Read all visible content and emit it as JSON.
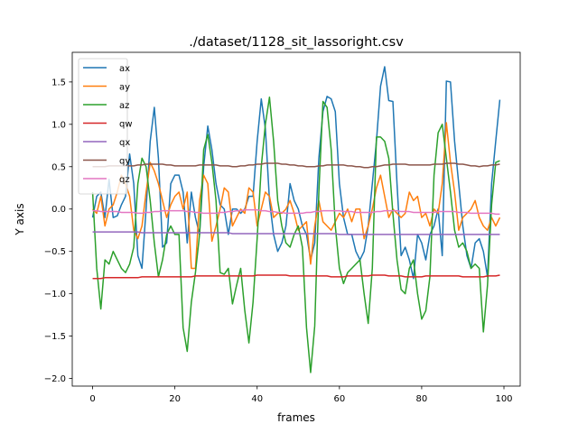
{
  "chart_data": {
    "type": "line",
    "title": "./dataset/1128_sit_lassoright.csv",
    "xlabel": "frames",
    "ylabel": "Y axis",
    "xlim": [
      -4.95,
      103.95
    ],
    "ylim": [
      -2.09,
      1.85
    ],
    "xticks": [
      0,
      20,
      40,
      60,
      80,
      100
    ],
    "yticks": [
      -2.0,
      -1.5,
      -1.0,
      -0.5,
      0.0,
      0.5,
      1.0,
      1.5
    ],
    "xtick_labels": [
      "0",
      "20",
      "40",
      "60",
      "80",
      "100"
    ],
    "ytick_labels": [
      "−2.0",
      "−1.5",
      "−1.0",
      "−0.5",
      "0.0",
      "0.5",
      "1.0",
      "1.5"
    ],
    "grid": false,
    "legend_position": "top-left",
    "series": [
      {
        "name": "ax",
        "color": "#1f77b4",
        "values": [
          -0.1,
          0.15,
          0.2,
          -0.1,
          0.35,
          -0.1,
          -0.08,
          0.05,
          0.15,
          0.65,
          0.3,
          -0.55,
          -0.7,
          0.0,
          0.8,
          1.2,
          0.6,
          -0.45,
          -0.4,
          0.3,
          0.4,
          0.4,
          0.2,
          -0.4,
          0.2,
          -0.1,
          -0.3,
          0.5,
          0.98,
          0.7,
          0.3,
          0.05,
          0.0,
          -0.3,
          0.0,
          0.0,
          -0.05,
          0.0,
          0.15,
          0.15,
          0.8,
          1.3,
          0.95,
          0.1,
          -0.3,
          -0.5,
          -0.4,
          -0.2,
          0.3,
          0.1,
          0.0,
          -0.2,
          -0.3,
          -0.6,
          -0.4,
          0.6,
          1.15,
          1.33,
          1.3,
          1.15,
          0.3,
          -0.1,
          -0.3,
          -0.3,
          -0.5,
          -0.6,
          -0.5,
          -0.2,
          0.3,
          0.8,
          1.45,
          1.68,
          1.28,
          1.27,
          0.3,
          -0.55,
          -0.45,
          -0.6,
          -0.82,
          -0.3,
          -0.4,
          -0.6,
          -0.3,
          -0.2,
          0.0,
          -0.55,
          1.51,
          1.5,
          0.8,
          0.3,
          -0.2,
          -0.55,
          -0.7,
          -0.4,
          -0.35,
          -0.5,
          -0.8,
          0.3,
          0.8,
          1.29
        ]
      },
      {
        "name": "ay",
        "color": "#ff7f0e",
        "values": [
          0.0,
          -0.05,
          0.15,
          -0.2,
          0.0,
          0.05,
          0.2,
          0.4,
          0.3,
          0.15,
          -0.25,
          -0.35,
          -0.2,
          0.2,
          0.55,
          0.45,
          0.3,
          0.1,
          -0.1,
          0.05,
          0.15,
          0.2,
          0.0,
          0.2,
          -0.7,
          -0.7,
          0.1,
          0.4,
          0.3,
          -0.38,
          -0.2,
          0.0,
          0.25,
          0.2,
          -0.2,
          -0.1,
          0.0,
          -0.05,
          0.25,
          0.2,
          -0.2,
          0.0,
          0.2,
          0.15,
          -0.1,
          -0.05,
          -0.05,
          0.0,
          0.1,
          -0.05,
          -0.25,
          -0.2,
          -0.15,
          -0.65,
          -0.2,
          0.1,
          -0.15,
          -0.2,
          -0.25,
          -0.15,
          -0.05,
          -0.1,
          0.0,
          -0.15,
          0.0,
          0.0,
          -0.35,
          -0.2,
          0.0,
          0.25,
          0.4,
          0.15,
          -0.1,
          0.0,
          -0.05,
          -0.1,
          -0.05,
          0.2,
          0.1,
          0.15,
          -0.1,
          -0.05,
          -0.2,
          0.0,
          -0.05,
          0.3,
          1.02,
          0.55,
          0.2,
          -0.25,
          -0.1,
          -0.05,
          0.0,
          0.1,
          -0.1,
          -0.2,
          -0.25,
          -0.1,
          -0.2,
          -0.1
        ]
      },
      {
        "name": "az",
        "color": "#2ca02c",
        "values": [
          0.2,
          -0.7,
          -1.18,
          -0.6,
          -0.65,
          -0.5,
          -0.6,
          -0.7,
          -0.75,
          -0.65,
          -0.45,
          0.3,
          0.6,
          0.5,
          0.1,
          -0.4,
          -0.8,
          -0.6,
          -0.3,
          -0.2,
          -0.3,
          -0.3,
          -1.4,
          -1.68,
          -1.1,
          -0.75,
          -0.3,
          0.7,
          0.88,
          0.55,
          0.1,
          -0.75,
          -0.77,
          -0.7,
          -1.12,
          -0.9,
          -0.7,
          -1.2,
          -1.58,
          -1.1,
          -0.35,
          0.5,
          1.0,
          1.32,
          0.8,
          0.1,
          -0.2,
          -0.4,
          -0.45,
          -0.3,
          -0.2,
          -0.45,
          -1.4,
          -1.93,
          -1.38,
          0.2,
          1.27,
          1.2,
          0.7,
          -0.2,
          -0.7,
          -0.88,
          -0.75,
          -0.7,
          -0.65,
          -0.6,
          -1.0,
          -1.35,
          -0.7,
          0.85,
          0.85,
          0.8,
          0.6,
          -0.05,
          -0.6,
          -0.95,
          -1.0,
          -0.7,
          -0.6,
          -1.0,
          -1.3,
          -1.2,
          -0.8,
          0.4,
          0.9,
          1.0,
          0.6,
          0.2,
          -0.25,
          -0.45,
          -0.4,
          -0.5,
          -0.7,
          -0.65,
          -0.7,
          -1.45,
          -0.9,
          0.05,
          0.55,
          0.57
        ]
      },
      {
        "name": "qw",
        "color": "#d62728",
        "values": [
          -0.82,
          -0.82,
          -0.82,
          -0.81,
          -0.81,
          -0.81,
          -0.81,
          -0.81,
          -0.81,
          -0.81,
          -0.81,
          -0.81,
          -0.8,
          -0.8,
          -0.8,
          -0.8,
          -0.8,
          -0.8,
          -0.8,
          -0.8,
          -0.8,
          -0.8,
          -0.8,
          -0.8,
          -0.8,
          -0.79,
          -0.79,
          -0.79,
          -0.79,
          -0.79,
          -0.79,
          -0.79,
          -0.79,
          -0.79,
          -0.79,
          -0.79,
          -0.79,
          -0.79,
          -0.79,
          -0.79,
          -0.78,
          -0.78,
          -0.78,
          -0.78,
          -0.78,
          -0.78,
          -0.78,
          -0.78,
          -0.79,
          -0.79,
          -0.79,
          -0.79,
          -0.79,
          -0.79,
          -0.79,
          -0.79,
          -0.79,
          -0.79,
          -0.8,
          -0.8,
          -0.8,
          -0.8,
          -0.79,
          -0.79,
          -0.79,
          -0.79,
          -0.79,
          -0.79,
          -0.78,
          -0.78,
          -0.78,
          -0.78,
          -0.79,
          -0.79,
          -0.79,
          -0.79,
          -0.8,
          -0.8,
          -0.8,
          -0.8,
          -0.8,
          -0.79,
          -0.79,
          -0.79,
          -0.79,
          -0.79,
          -0.79,
          -0.79,
          -0.79,
          -0.79,
          -0.8,
          -0.8,
          -0.8,
          -0.8,
          -0.8,
          -0.8,
          -0.79,
          -0.79,
          -0.79,
          -0.78
        ]
      },
      {
        "name": "qx",
        "color": "#9467bd",
        "values": [
          -0.27,
          -0.27,
          -0.27,
          -0.27,
          -0.27,
          -0.27,
          -0.27,
          -0.27,
          -0.27,
          -0.27,
          -0.27,
          -0.27,
          -0.28,
          -0.28,
          -0.28,
          -0.28,
          -0.28,
          -0.28,
          -0.28,
          -0.28,
          -0.28,
          -0.28,
          -0.28,
          -0.28,
          -0.28,
          -0.28,
          -0.28,
          -0.28,
          -0.28,
          -0.28,
          -0.28,
          -0.28,
          -0.28,
          -0.28,
          -0.29,
          -0.29,
          -0.29,
          -0.29,
          -0.29,
          -0.29,
          -0.29,
          -0.29,
          -0.29,
          -0.29,
          -0.29,
          -0.29,
          -0.29,
          -0.29,
          -0.29,
          -0.29,
          -0.29,
          -0.29,
          -0.29,
          -0.29,
          -0.29,
          -0.29,
          -0.29,
          -0.29,
          -0.29,
          -0.29,
          -0.3,
          -0.3,
          -0.3,
          -0.3,
          -0.3,
          -0.3,
          -0.3,
          -0.3,
          -0.3,
          -0.3,
          -0.3,
          -0.3,
          -0.3,
          -0.3,
          -0.3,
          -0.3,
          -0.3,
          -0.3,
          -0.3,
          -0.3,
          -0.3,
          -0.3,
          -0.3,
          -0.3,
          -0.3,
          -0.3,
          -0.3,
          -0.3,
          -0.3,
          -0.3,
          -0.3,
          -0.3,
          -0.3,
          -0.3,
          -0.3,
          -0.3,
          -0.3,
          -0.3,
          -0.3,
          -0.3
        ]
      },
      {
        "name": "qy",
        "color": "#8c564b",
        "values": [
          0.5,
          0.5,
          0.5,
          0.5,
          0.51,
          0.51,
          0.51,
          0.51,
          0.51,
          0.51,
          0.51,
          0.52,
          0.52,
          0.53,
          0.53,
          0.53,
          0.53,
          0.53,
          0.52,
          0.52,
          0.51,
          0.51,
          0.51,
          0.51,
          0.51,
          0.51,
          0.52,
          0.52,
          0.52,
          0.52,
          0.52,
          0.51,
          0.51,
          0.51,
          0.5,
          0.5,
          0.51,
          0.51,
          0.52,
          0.52,
          0.53,
          0.53,
          0.54,
          0.54,
          0.54,
          0.54,
          0.53,
          0.53,
          0.52,
          0.52,
          0.51,
          0.51,
          0.5,
          0.5,
          0.5,
          0.51,
          0.51,
          0.52,
          0.52,
          0.52,
          0.52,
          0.52,
          0.51,
          0.51,
          0.5,
          0.5,
          0.49,
          0.49,
          0.5,
          0.5,
          0.51,
          0.52,
          0.52,
          0.53,
          0.53,
          0.53,
          0.53,
          0.52,
          0.52,
          0.52,
          0.52,
          0.52,
          0.52,
          0.53,
          0.53,
          0.53,
          0.54,
          0.54,
          0.54,
          0.53,
          0.53,
          0.52,
          0.51,
          0.51,
          0.5,
          0.51,
          0.51,
          0.52,
          0.52,
          0.53
        ]
      },
      {
        "name": "qz",
        "color": "#e377c2",
        "values": [
          -0.02,
          -0.02,
          -0.03,
          -0.03,
          -0.03,
          -0.03,
          -0.03,
          -0.04,
          -0.04,
          -0.04,
          -0.04,
          -0.05,
          -0.05,
          -0.04,
          -0.04,
          -0.03,
          -0.03,
          -0.02,
          -0.02,
          -0.02,
          -0.02,
          -0.02,
          -0.02,
          -0.03,
          -0.03,
          -0.04,
          -0.04,
          -0.05,
          -0.05,
          -0.05,
          -0.05,
          -0.04,
          -0.04,
          -0.03,
          -0.03,
          -0.02,
          -0.02,
          -0.01,
          -0.01,
          -0.01,
          -0.01,
          -0.02,
          -0.02,
          -0.03,
          -0.03,
          -0.04,
          -0.04,
          -0.05,
          -0.05,
          -0.05,
          -0.05,
          -0.05,
          -0.04,
          -0.04,
          -0.03,
          -0.03,
          -0.02,
          -0.02,
          -0.02,
          -0.02,
          -0.02,
          -0.03,
          -0.03,
          -0.03,
          -0.04,
          -0.04,
          -0.04,
          -0.04,
          -0.04,
          -0.03,
          -0.03,
          -0.02,
          -0.02,
          -0.02,
          -0.02,
          -0.03,
          -0.03,
          -0.03,
          -0.04,
          -0.04,
          -0.04,
          -0.04,
          -0.04,
          -0.04,
          -0.03,
          -0.03,
          -0.03,
          -0.03,
          -0.03,
          -0.04,
          -0.04,
          -0.04,
          -0.05,
          -0.05,
          -0.05,
          -0.05,
          -0.05,
          -0.05,
          -0.06,
          -0.06
        ]
      }
    ]
  }
}
